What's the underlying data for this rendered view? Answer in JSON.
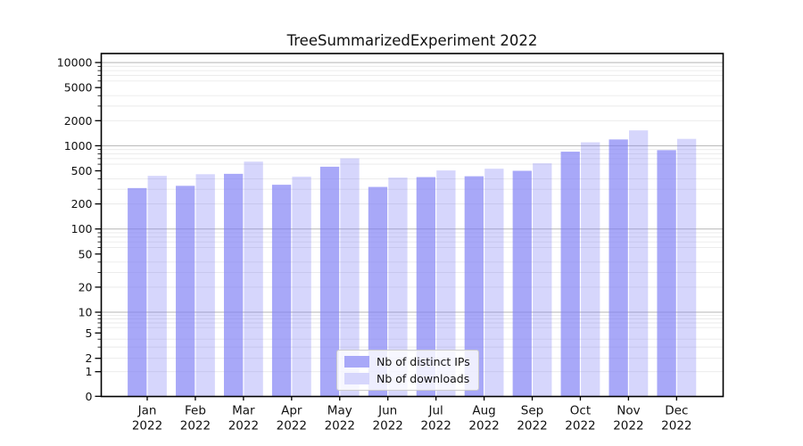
{
  "title": "TreeSummarizedExperiment 2022",
  "chart_data": {
    "type": "bar",
    "title": "TreeSummarizedExperiment 2022",
    "categories": [
      "Jan",
      "Feb",
      "Mar",
      "Apr",
      "May",
      "Jun",
      "Jul",
      "Aug",
      "Sep",
      "Oct",
      "Nov",
      "Dec"
    ],
    "category_year_label": "2022",
    "series": [
      {
        "name": "Nb of distinct IPs",
        "values": [
          310,
          330,
          460,
          340,
          560,
          320,
          420,
          430,
          500,
          850,
          1190,
          885
        ]
      },
      {
        "name": "Nb of downloads",
        "values": [
          435,
          455,
          645,
          425,
          705,
          415,
          505,
          530,
          615,
          1100,
          1530,
          1210
        ]
      }
    ],
    "y_scale": "symlog",
    "y_ticks": [
      0,
      1,
      2,
      5,
      10,
      20,
      50,
      100,
      200,
      500,
      1000,
      2000,
      5000,
      10000
    ],
    "ylim": [
      0,
      12800
    ],
    "grid": true,
    "legend_position": "lower center",
    "colors": {
      "bar_base": "#7b7bf5",
      "ips_opacity": 0.66,
      "downloads_opacity": 0.31,
      "grid_major": "#b5b5b5",
      "grid_minor": "#e9e9e9",
      "axis": "#000000",
      "text": "#111111",
      "background": "#ffffff"
    }
  }
}
